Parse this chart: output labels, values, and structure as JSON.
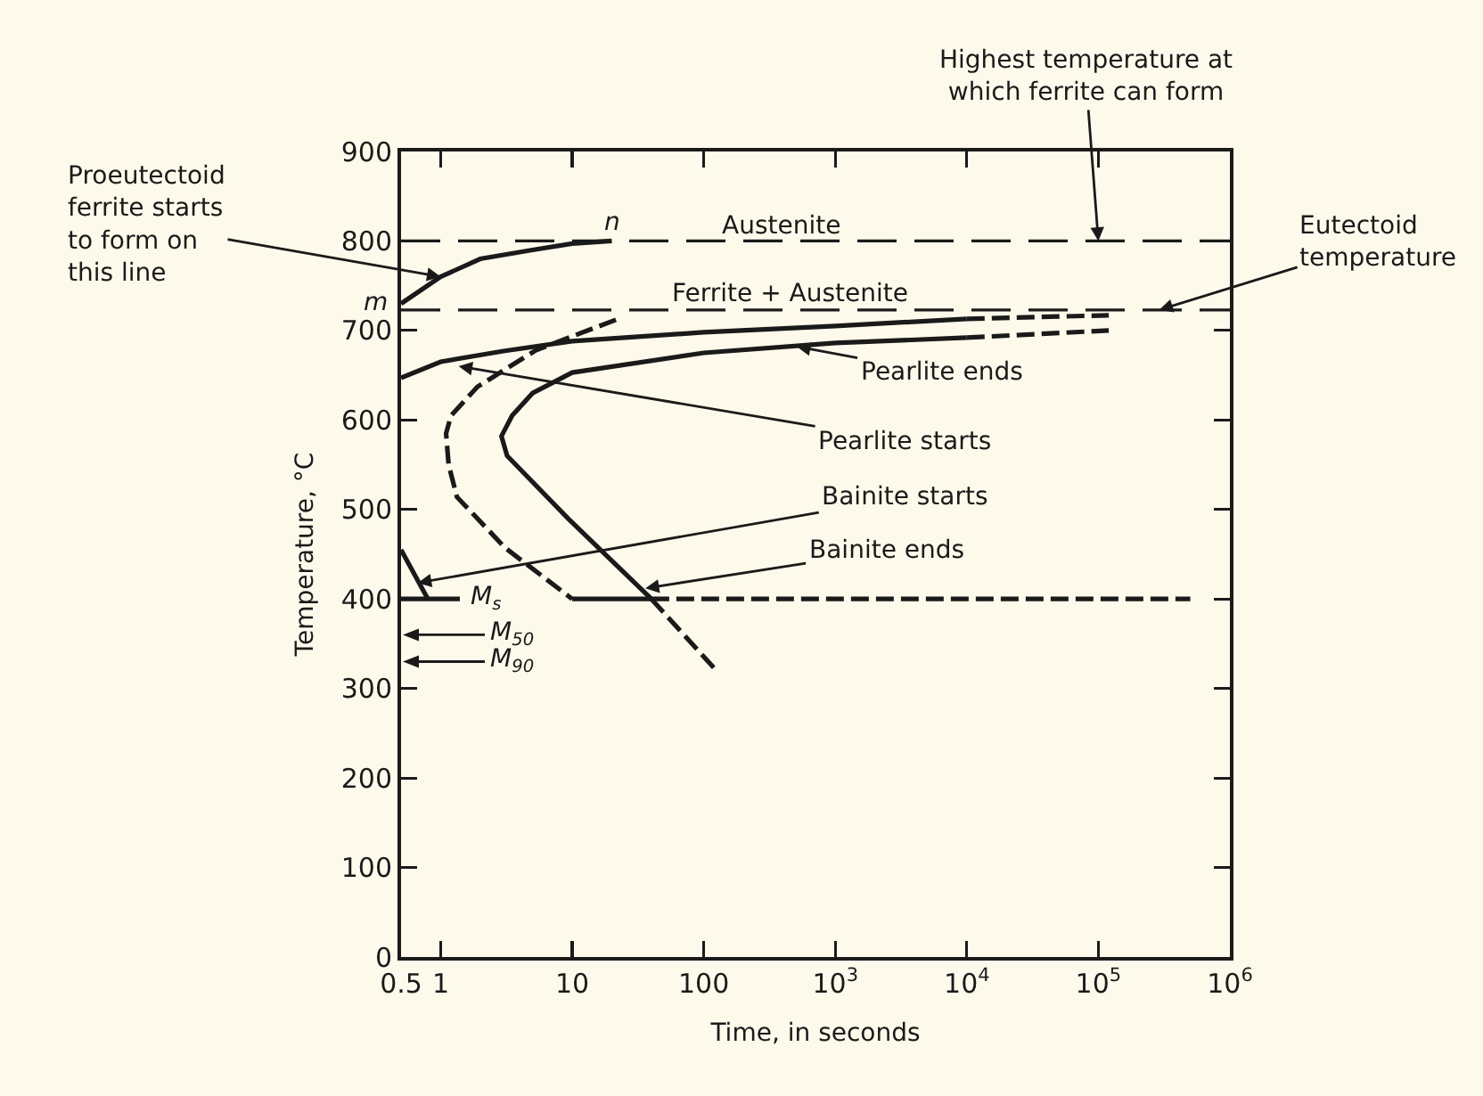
{
  "chart_data": {
    "type": "line",
    "xlabel": "Time, in seconds",
    "ylabel": "Temperature, °C",
    "log": "x",
    "marker": "none",
    "line_style": "solid",
    "xlim": [
      0.5,
      1000000
    ],
    "ylim": [
      0,
      900
    ],
    "xticks": [
      0.5,
      1,
      10,
      100,
      {
        "value": 1000,
        "label": "10$^{3}$"
      },
      {
        "value": 10000,
        "label": "10$^{4}$"
      },
      {
        "value": 100000,
        "label": "10$^{5}$"
      },
      {
        "value": 1000000,
        "label": "10$^{6}$"
      }
    ],
    "yticks": [
      0,
      100,
      200,
      300,
      400,
      500,
      600,
      700,
      800,
      900
    ],
    "series": [
      {
        "color": "#1a1a1a",
        "x": [
          0.5,
          1,
          2,
          5,
          10,
          20
        ],
        "values": [
          730,
          760,
          780,
          790,
          797,
          800
        ]
      },
      {
        "color": "#1a1a1a",
        "x": [
          0.5,
          1,
          3,
          10,
          100,
          1000,
          10000
        ],
        "values": [
          647,
          665,
          677,
          688,
          698,
          705,
          713
        ]
      },
      {
        "color": "#1a1a1a",
        "line_style": "dashed",
        "x": [
          10000,
          120000
        ],
        "values": [
          713,
          717
        ]
      },
      {
        "color": "#1a1a1a",
        "x": [
          40,
          9.3,
          3.2,
          2.9,
          3.5,
          5,
          10,
          100,
          1000,
          10000
        ],
        "values": [
          400,
          490,
          560,
          582,
          605,
          630,
          653,
          675,
          686,
          692
        ]
      },
      {
        "color": "#1a1a1a",
        "line_style": "dashed",
        "x": [
          10000,
          120000
        ],
        "values": [
          692,
          700
        ]
      },
      {
        "color": "#1a1a1a",
        "line_style": "dashed",
        "x": [
          21.5,
          5.3,
          1.9,
          1.2,
          1.1,
          1.15,
          1.33,
          3.1,
          10
        ],
        "values": [
          712,
          678,
          637,
          605,
          585,
          550,
          514,
          457,
          400
        ]
      },
      {
        "color": "#1a1a1a",
        "x": [
          10,
          40
        ],
        "values": [
          400,
          400
        ]
      },
      {
        "color": "#1a1a1a",
        "line_style": "dashed",
        "x": [
          40,
          500000
        ],
        "values": [
          400,
          400
        ]
      },
      {
        "color": "#1a1a1a",
        "line_style": "dashed",
        "x": [
          40,
          125
        ],
        "values": [
          400,
          320
        ]
      },
      {
        "color": "#1a1a1a",
        "x": [
          0.5,
          0.8
        ],
        "values": [
          455,
          400
        ]
      },
      {
        "color": "#1a1a1a",
        "x": [
          0.5,
          1.4
        ],
        "values": [
          400,
          400
        ]
      }
    ],
    "ref_lines": [
      {
        "axis": "y",
        "value": 800,
        "color": "#1a1a1a",
        "line_style": "dashed"
      },
      {
        "axis": "y",
        "value": 723,
        "color": "#1a1a1a",
        "line_style": "dashed"
      }
    ],
    "annotations": [
      {
        "text": "Highest temperature at\nwhich ferrite can form",
        "x": 100000,
        "y": 800
      },
      {
        "text": "Eutectoid\ntemperature",
        "x": 290000,
        "y": 723
      },
      {
        "text": "Proeutectoid\nferrite starts\nto form on\nthis line",
        "x": 1,
        "y": 760
      },
      {
        "text": "Pearlite ends",
        "x": 510,
        "y": 682
      },
      {
        "text": "Pearlite starts",
        "x": 1.37,
        "y": 660
      },
      {
        "text": "Bainite starts",
        "x": 0.67,
        "y": 418
      },
      {
        "text": "Bainite ends",
        "x": 36,
        "y": 412
      },
      {
        "text": "M$_{s}$",
        "x": 1.6,
        "y": 400
      },
      "M$_{50}$",
      "M$_{90}$",
      {
        "text": "m",
        "x": 0.5,
        "y": 730
      },
      {
        "text": "n",
        "x": 20,
        "y": 800
      },
      "Austenite",
      "Ferrite + Austenite"
    ]
  }
}
